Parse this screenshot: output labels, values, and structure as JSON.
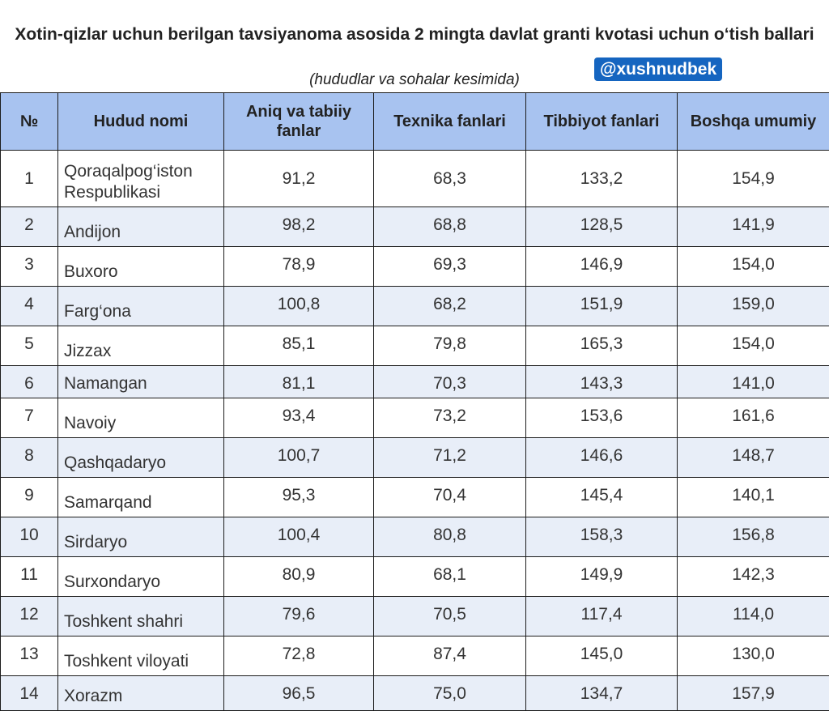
{
  "header": {
    "title": "Xotin-qizlar uchun berilgan tavsiyanoma asosida 2 mingta davlat granti kvotasi uchun o‘tish ballari",
    "subtitle": "(hududlar va sohalar kesimida)",
    "handle": "@xushnudbek"
  },
  "colors": {
    "header_bg": "#a8c3f0",
    "row_alt_bg": "#e8eef8",
    "handle_bg": "#1565c0"
  },
  "table": {
    "columns": [
      "№",
      "Hudud nomi",
      "Aniq va tabiiy fanlar",
      "Texnika fanlari",
      "Tibbiyot fanlari",
      "Boshqa umumiy"
    ],
    "rows": [
      [
        "1",
        "Qoraqalpog‘iston Respublikasi",
        "91,2",
        "68,3",
        "133,2",
        "154,9"
      ],
      [
        "2",
        "Andijon",
        "98,2",
        "68,8",
        "128,5",
        "141,9"
      ],
      [
        "3",
        "Buxoro",
        "78,9",
        "69,3",
        "146,9",
        "154,0"
      ],
      [
        "4",
        "Farg‘ona",
        "100,8",
        "68,2",
        "151,9",
        "159,0"
      ],
      [
        "5",
        "Jizzax",
        "85,1",
        "79,8",
        "165,3",
        "154,0"
      ],
      [
        "6",
        "Namangan",
        "81,1",
        "70,3",
        "143,3",
        "141,0"
      ],
      [
        "7",
        "Navoiy",
        "93,4",
        "73,2",
        "153,6",
        "161,6"
      ],
      [
        "8",
        "Qashqadaryo",
        "100,7",
        "71,2",
        "146,6",
        "148,7"
      ],
      [
        "9",
        "Samarqand",
        "95,3",
        "70,4",
        "145,4",
        "140,1"
      ],
      [
        "10",
        "Sirdaryo",
        "100,4",
        "80,8",
        "158,3",
        "156,8"
      ],
      [
        "11",
        "Surxondaryo",
        "80,9",
        "68,1",
        "149,9",
        "142,3"
      ],
      [
        "12",
        "Toshkent shahri",
        "79,6",
        "70,5",
        "117,4",
        "114,0"
      ],
      [
        "13",
        "Toshkent viloyati",
        "72,8",
        "87,4",
        "145,0",
        "130,0"
      ],
      [
        "14",
        "Xorazm",
        "96,5",
        "75,0",
        "134,7",
        "157,9"
      ]
    ]
  }
}
